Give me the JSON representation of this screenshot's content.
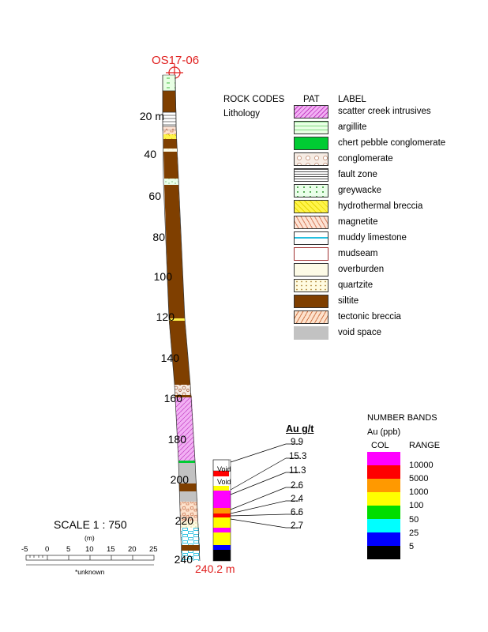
{
  "hole": {
    "name": "OS17-06",
    "end_depth_label": "240.2 m",
    "depth_labels": [
      "20 m",
      "40",
      "60",
      "80",
      "100",
      "120",
      "140",
      "160",
      "180",
      "200",
      "220",
      "240"
    ]
  },
  "legend": {
    "header_codes": "ROCK CODES",
    "header_pat": "PAT",
    "header_label": "LABEL",
    "subheader": "Lithology",
    "items": [
      {
        "label": "scatter creek intrusives",
        "color": "#f2b0f4"
      },
      {
        "label": "argillite",
        "color": "#e8ffe4"
      },
      {
        "label": "chert pebble conglomerate",
        "color": "#00cc33"
      },
      {
        "label": "conglomerate",
        "color": "#f6ece4"
      },
      {
        "label": "fault zone",
        "color": "#ffffff"
      },
      {
        "label": "greywacke",
        "color": "#eaffea"
      },
      {
        "label": "hydrothermal breccia",
        "color": "#fff44a"
      },
      {
        "label": "magnetite",
        "color": "#fde3d4"
      },
      {
        "label": "muddy limestone",
        "color": "#ffffff"
      },
      {
        "label": "mudseam",
        "color": "#ffffff"
      },
      {
        "label": "overburden",
        "color": "#fdfbe6"
      },
      {
        "label": "quartzite",
        "color": "#fffbe0"
      },
      {
        "label": "siltite",
        "color": "#7f3f00"
      },
      {
        "label": "tectonic breccia",
        "color": "#fde2cc"
      },
      {
        "label": "void space",
        "color": "#c2c2c2"
      }
    ]
  },
  "assays": {
    "header": "Au g/t",
    "values": [
      "9.9",
      "15.3",
      "11.3",
      "2.6",
      "2.4",
      "6.6",
      "2.7"
    ]
  },
  "void_labels": [
    "Void",
    "Void"
  ],
  "number_bands": {
    "title": "NUMBER BANDS",
    "unit": "Au (ppb)",
    "col_header": "COL",
    "range_header": "RANGE",
    "bands": [
      {
        "color": "#ff00ff",
        "range": "10000"
      },
      {
        "color": "#ff0000",
        "range": "5000"
      },
      {
        "color": "#ff9900",
        "range": "1000"
      },
      {
        "color": "#ffff00",
        "range": "100"
      },
      {
        "color": "#00dd00",
        "range": "50"
      },
      {
        "color": "#00ffff",
        "range": "25"
      },
      {
        "color": "#0000ff",
        "range": "5"
      },
      {
        "color": "#000000",
        "range": ""
      }
    ]
  },
  "scale": {
    "title": "SCALE  1 : 750",
    "unit": "(m)",
    "ticks": [
      "-5",
      "0",
      "5",
      "10",
      "15",
      "20",
      "25"
    ],
    "note": "*unknown"
  }
}
